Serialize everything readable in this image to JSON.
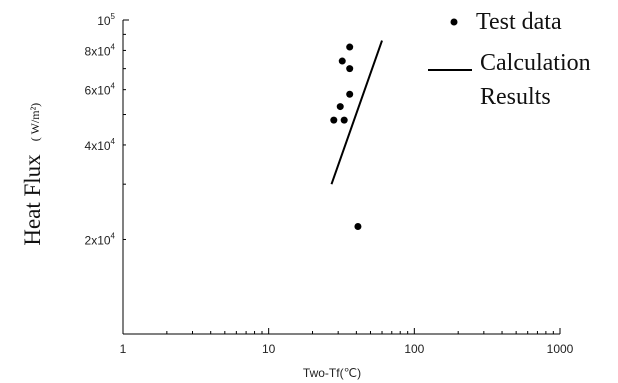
{
  "chart_data": {
    "type": "scatter",
    "xscale": "log",
    "yscale": "log",
    "xlim": [
      1,
      1000
    ],
    "ylim": [
      10000,
      100000
    ],
    "xlabel": "Two-Tf(℃)",
    "ylabel_main": "Heat Flux",
    "ylabel_unit": "( W/m²)",
    "x_ticks": [
      {
        "value": 1,
        "label": "1"
      },
      {
        "value": 10,
        "label": "10"
      },
      {
        "value": 100,
        "label": "100"
      },
      {
        "value": 1000,
        "label": "1000"
      }
    ],
    "y_ticks": [
      {
        "value": 20000,
        "mantissa": "2x10",
        "exp": "4"
      },
      {
        "value": 40000,
        "mantissa": "4x10",
        "exp": "4"
      },
      {
        "value": 60000,
        "mantissa": "6x10",
        "exp": "4"
      },
      {
        "value": 80000,
        "mantissa": "8x10",
        "exp": "4"
      },
      {
        "value": 100000,
        "mantissa": "10",
        "exp": "5"
      }
    ],
    "series": [
      {
        "name": "Test data",
        "kind": "points",
        "points": [
          [
            36,
            82000
          ],
          [
            32,
            74000
          ],
          [
            36,
            70000
          ],
          [
            36,
            58000
          ],
          [
            31,
            53000
          ],
          [
            28,
            48000
          ],
          [
            33,
            48000
          ],
          [
            41,
            22000
          ]
        ]
      },
      {
        "name": "Calculation Results",
        "kind": "line",
        "points": [
          [
            27,
            30000
          ],
          [
            60,
            86000
          ]
        ]
      }
    ],
    "legend": [
      {
        "marker": "dot",
        "lines": [
          "Test data"
        ]
      },
      {
        "marker": "line",
        "lines": [
          "Calculation",
          "Results"
        ]
      }
    ],
    "legend_position": "top-right",
    "grid": false
  }
}
